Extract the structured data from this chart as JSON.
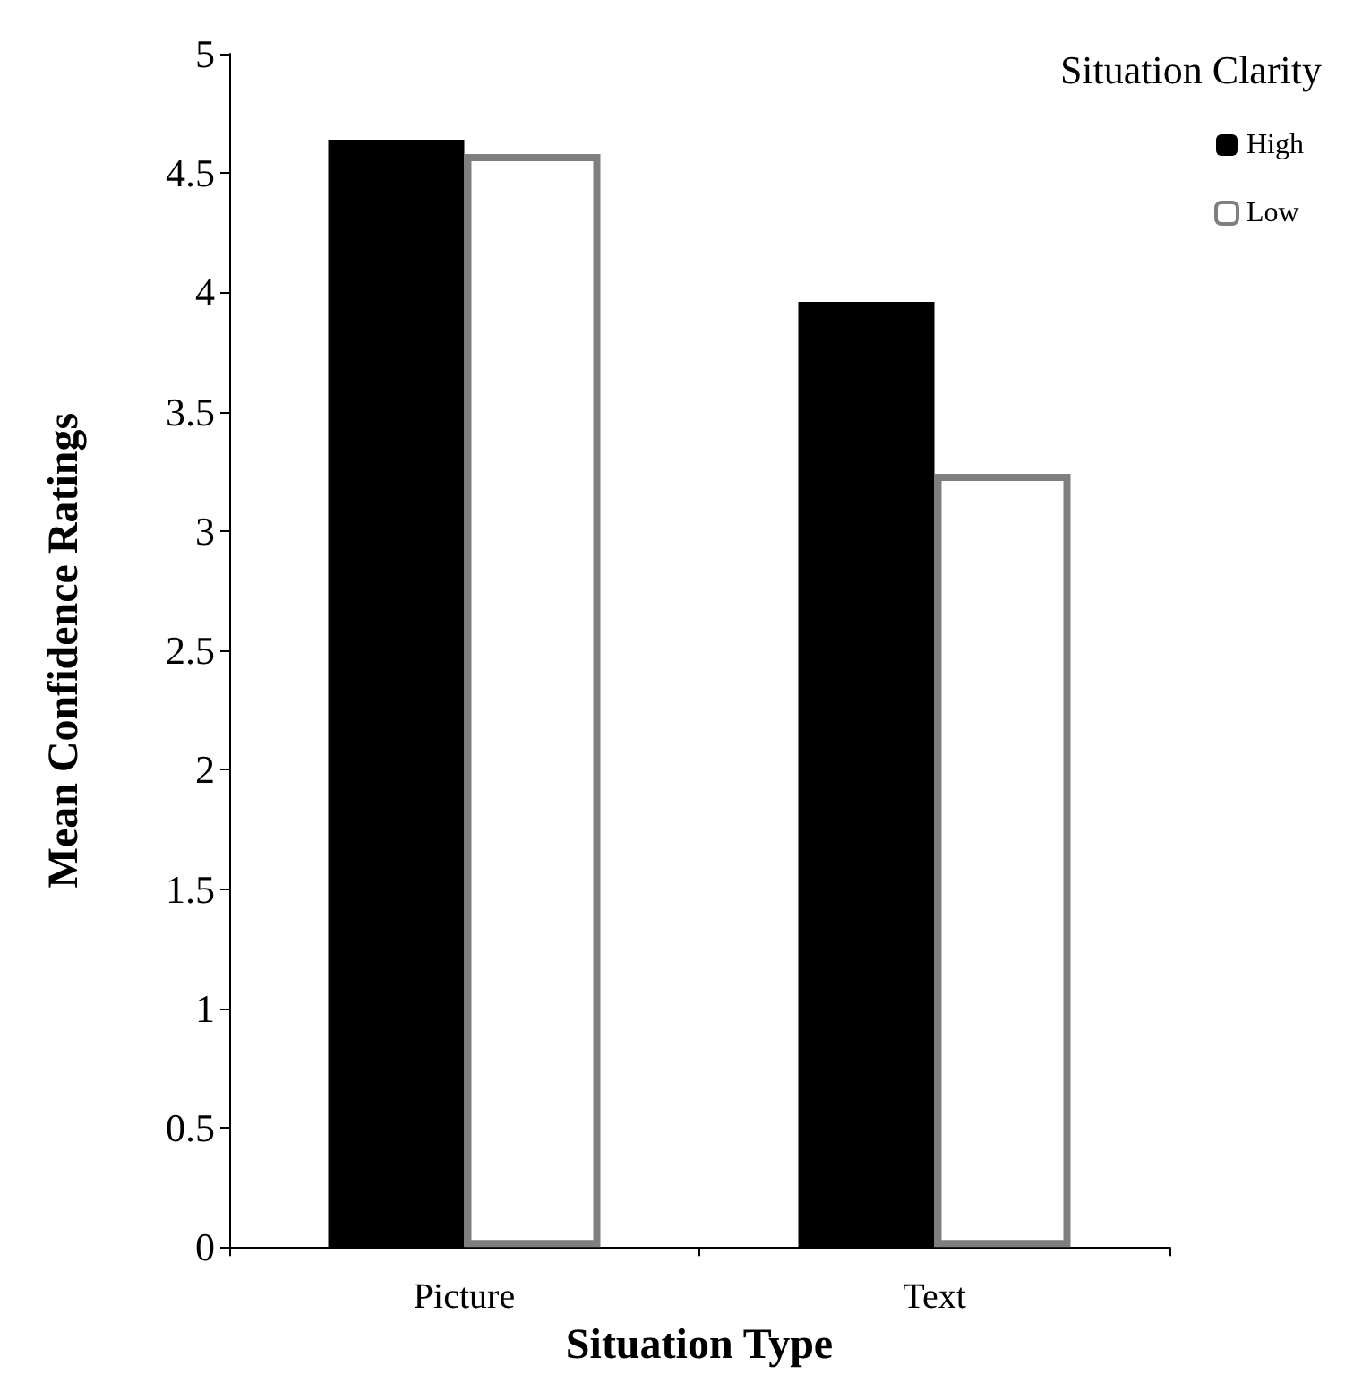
{
  "chart_data": {
    "type": "bar",
    "xlabel": "Situation Type",
    "ylabel": "Mean Confidence Ratings",
    "legend_title": "Situation Clarity",
    "categories": [
      "Picture",
      "Text"
    ],
    "series": [
      {
        "name": "High",
        "color": "#000000",
        "values": [
          4.64,
          3.96
        ]
      },
      {
        "name": "Low",
        "color": "#ffffff",
        "values": [
          4.58,
          3.24
        ]
      }
    ],
    "ylim": [
      0,
      5
    ],
    "yticks": [
      0,
      0.5,
      1,
      1.5,
      2,
      2.5,
      3,
      3.5,
      4,
      4.5,
      5
    ],
    "grid": false,
    "legend": "top right"
  }
}
